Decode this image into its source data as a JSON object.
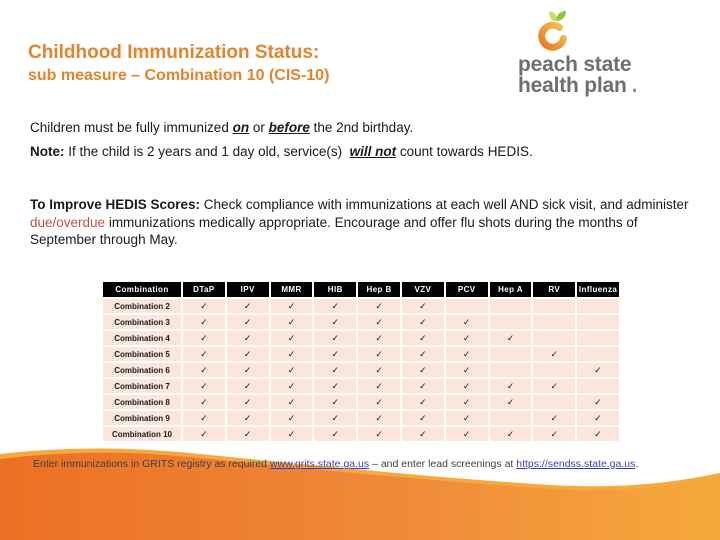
{
  "slide": {
    "title_line1": "Childhood Immunization Status:",
    "title_line2": "sub measure – Combination 10 (CIS-10)",
    "logo": {
      "line1": "peach state",
      "line2": "health plan",
      "period": "."
    },
    "intro": {
      "line1_pre": "Children must be fully immunized ",
      "line1_word1": "on",
      "line1_mid": " or ",
      "line1_word2": "before",
      "line1_post": " the 2nd birthday.",
      "note_label": "Note:",
      "note_pre": " If the child is 2 years and 1 day old, service(s)  ",
      "note_word": "will not",
      "note_post": " count towards HEDIS."
    },
    "improve": {
      "label": "To Improve HEDIS Scores:",
      "seg1": " Check compliance with immunizations at each well AND sick visit, and administer ",
      "highlight": "due/overdue",
      "seg2": " immunizations medically appropriate. Encourage and offer flu shots during the months of September through May."
    },
    "table": {
      "check_glyph": "✓",
      "columns": [
        "Combination",
        "DTaP",
        "IPV",
        "MMR",
        "HIB",
        "Hep B",
        "VZV",
        "PCV",
        "Hep A",
        "RV",
        "Influenza"
      ],
      "rows": [
        {
          "label": "Combination 2",
          "checks": [
            1,
            1,
            1,
            1,
            1,
            1,
            0,
            0,
            0,
            0
          ]
        },
        {
          "label": "Combination 3",
          "checks": [
            1,
            1,
            1,
            1,
            1,
            1,
            1,
            0,
            0,
            0
          ]
        },
        {
          "label": "Combination 4",
          "checks": [
            1,
            1,
            1,
            1,
            1,
            1,
            1,
            1,
            0,
            0
          ]
        },
        {
          "label": "Combination 5",
          "checks": [
            1,
            1,
            1,
            1,
            1,
            1,
            1,
            0,
            1,
            0
          ]
        },
        {
          "label": "Combination 6",
          "checks": [
            1,
            1,
            1,
            1,
            1,
            1,
            1,
            0,
            0,
            1
          ]
        },
        {
          "label": "Combination 7",
          "checks": [
            1,
            1,
            1,
            1,
            1,
            1,
            1,
            1,
            1,
            0
          ]
        },
        {
          "label": "Combination 8",
          "checks": [
            1,
            1,
            1,
            1,
            1,
            1,
            1,
            1,
            0,
            1
          ]
        },
        {
          "label": "Combination 9",
          "checks": [
            1,
            1,
            1,
            1,
            1,
            1,
            1,
            0,
            1,
            1
          ]
        },
        {
          "label": "Combination 10",
          "checks": [
            1,
            1,
            1,
            1,
            1,
            1,
            1,
            1,
            1,
            1
          ]
        }
      ]
    },
    "footer": {
      "seg1": "Enter immunizations in GRITS registry as required ",
      "link1": "www.grits.state.ga.us",
      "seg2": " – and enter lead screenings at ",
      "link2": "https://sendss.state.ga.us",
      "seg3": "."
    },
    "colors": {
      "title_orange": "#E2842F",
      "wave_orange_left": "#EC7023",
      "wave_amber_right": "#F6A93B",
      "row_pink": "#FCE5DB",
      "header_black": "#000000",
      "red_text": "#C0504D",
      "link_blue": "#3B3FB6",
      "logo_gray": "#6E6F72",
      "leaf_dark": "#8CC63E",
      "leaf_light": "#C8DB62"
    }
  }
}
